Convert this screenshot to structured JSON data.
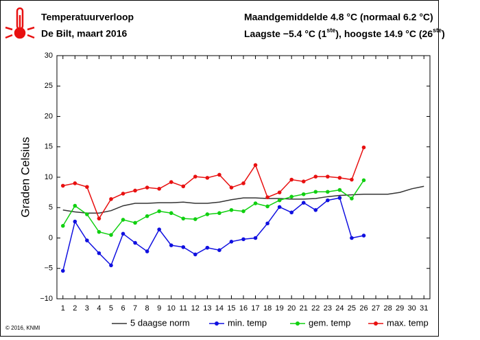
{
  "chart_data": {
    "type": "line",
    "title": "Temperatuurverloop",
    "subtitle": "De Bilt, maart 2016",
    "summary": "Maandgemiddelde 4.8 °C (normaal 6.2 °C)",
    "extremes": [
      "Laagste −5.4 °C (1",
      "ste",
      "), hoogste 14.9 °C (26",
      "ste",
      ")"
    ],
    "ylabel": "Graden Celsius",
    "credit": "© 2016, KNMI",
    "x": [
      1,
      2,
      3,
      4,
      5,
      6,
      7,
      8,
      9,
      10,
      11,
      12,
      13,
      14,
      15,
      16,
      17,
      18,
      19,
      20,
      21,
      22,
      23,
      24,
      25,
      26,
      27,
      28,
      29,
      30,
      31
    ],
    "xlim": [
      0.5,
      31.5
    ],
    "xticks": [
      1,
      2,
      3,
      4,
      5,
      6,
      7,
      8,
      9,
      10,
      11,
      12,
      13,
      14,
      15,
      16,
      17,
      18,
      19,
      20,
      21,
      22,
      23,
      24,
      25,
      26,
      27,
      28,
      29,
      30,
      31
    ],
    "ylim": [
      -10,
      30
    ],
    "yticks": [
      {
        "value": -10,
        "label": "−10"
      },
      {
        "value": -5,
        "label": "−5"
      },
      0,
      5,
      10,
      15,
      20,
      25,
      30
    ],
    "grid": false,
    "series": [
      {
        "name": "5 daagse norm",
        "color": "#333333",
        "marker": false,
        "values": [
          4.6,
          4.3,
          4.1,
          4.1,
          4.5,
          5.3,
          5.7,
          5.7,
          5.8,
          5.8,
          5.9,
          5.7,
          5.7,
          5.9,
          6.3,
          6.6,
          6.6,
          6.5,
          6.5,
          6.4,
          6.4,
          6.5,
          6.8,
          7.0,
          7.1,
          7.2,
          7.2,
          7.2,
          7.5,
          8.1,
          8.5
        ]
      },
      {
        "name": "min. temp",
        "color": "#1010e0",
        "marker": true,
        "values": [
          -5.4,
          2.7,
          -0.4,
          -2.5,
          -4.5,
          0.7,
          -0.8,
          -2.2,
          1.4,
          -1.2,
          -1.5,
          -2.7,
          -1.6,
          -2.0,
          -0.6,
          -0.2,
          0.0,
          2.4,
          5.1,
          4.2,
          5.8,
          4.6,
          6.2,
          6.6,
          0.0,
          0.4,
          null,
          null,
          null,
          null,
          null
        ]
      },
      {
        "name": "gem. temp",
        "color": "#10d010",
        "marker": true,
        "values": [
          2.0,
          5.3,
          3.9,
          1.0,
          0.5,
          3.0,
          2.5,
          3.6,
          4.4,
          4.1,
          3.2,
          3.1,
          3.9,
          4.1,
          4.6,
          4.4,
          5.7,
          5.2,
          6.2,
          6.8,
          7.2,
          7.6,
          7.6,
          7.9,
          6.5,
          9.5,
          null,
          null,
          null,
          null,
          null
        ]
      },
      {
        "name": "max. temp",
        "color": "#e81010",
        "marker": true,
        "values": [
          8.6,
          9.0,
          8.4,
          3.2,
          6.4,
          7.3,
          7.8,
          8.3,
          8.1,
          9.2,
          8.5,
          10.1,
          9.9,
          10.4,
          8.3,
          9.0,
          12.0,
          6.7,
          7.5,
          9.6,
          9.3,
          10.1,
          10.1,
          9.9,
          9.6,
          14.9,
          null,
          null,
          null,
          null,
          null
        ]
      }
    ]
  }
}
